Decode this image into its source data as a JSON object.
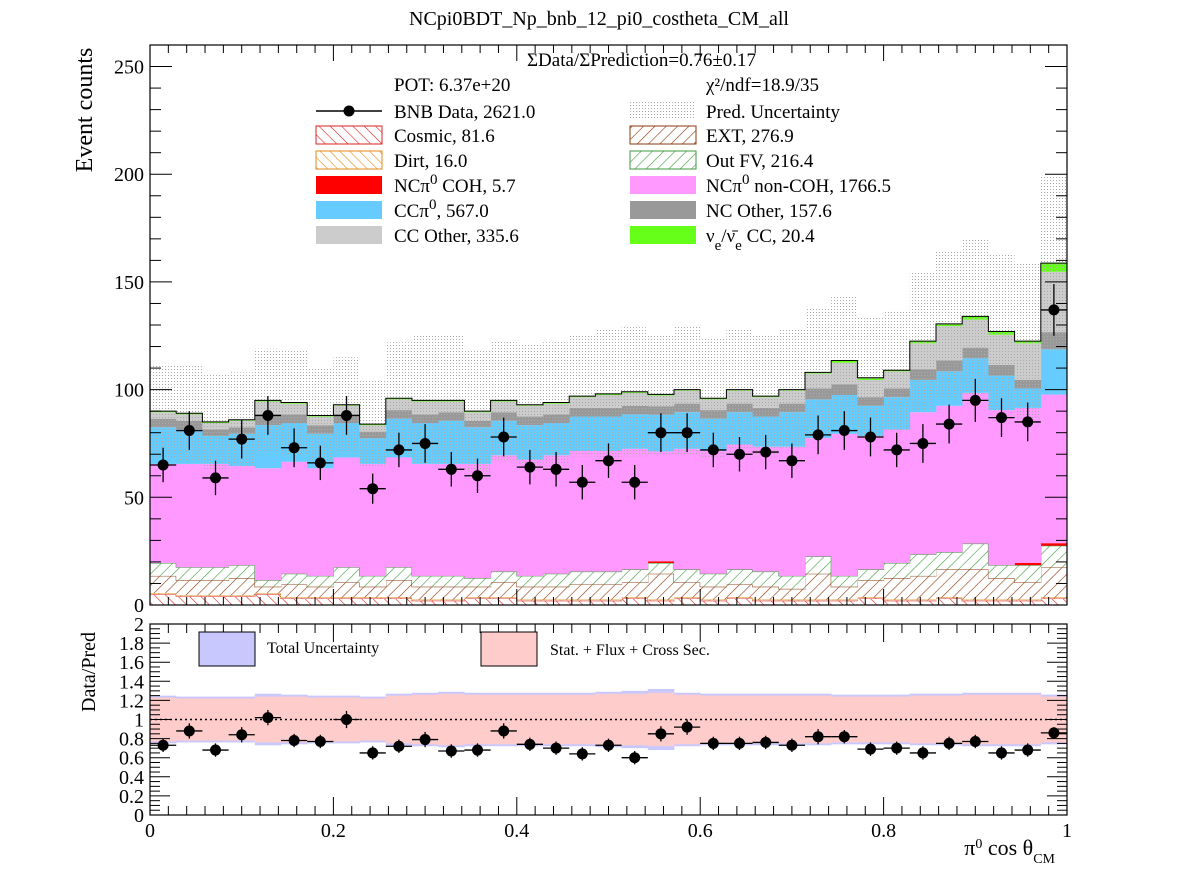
{
  "chart_data": [
    {
      "type": "bar",
      "stacked": true,
      "title": "NCpi0BDT_Np_bnb_12_pi0_costheta_CM_all",
      "ylabel": "Event counts",
      "xlim": [
        0,
        1
      ],
      "ylim": [
        0,
        260
      ],
      "bins": 35,
      "y_ticks": [
        0,
        50,
        100,
        150,
        200,
        250
      ],
      "annotations": {
        "ratio_text": "ΣData/ΣPrediction=0.76±0.17",
        "pot_text": "POT: 6.37e+20",
        "chi2_text": "χ²/ndf=18.9/35"
      },
      "legend_placement": "top",
      "legend": {
        "data": "BNB Data, 2621.0",
        "pred_uncertainty": "Pred. Uncertainty",
        "cosmic": "Cosmic, 81.6",
        "ext": "EXT, 276.9",
        "dirt": "Dirt, 16.0",
        "outfv": "Out FV, 216.4",
        "nccoh_a": "NCπ",
        "nccoh_sup": "0",
        "nccoh_b": " COH,  5.7",
        "ncnoncoh_a": "NCπ",
        "ncnoncoh_sup": "0",
        "ncnoncoh_b": " non-COH,  1766.5",
        "ccpi_a": "CCπ",
        "ccpi_sup": "0",
        "ccpi_b": ", 567.0",
        "ncother": "NC Other, 157.6",
        "ccother": "CC Other, 335.6",
        "nue_a": "ν",
        "nue_sub1": "e",
        "nue_mid": "/ν̄",
        "nue_sub2": "e",
        "nue_b": " CC, 20.4"
      },
      "series": [
        {
          "name": "Cosmic",
          "color": "#dd2222",
          "values": [
            5,
            4,
            4,
            4,
            5,
            3,
            3,
            3,
            3,
            3,
            2,
            2,
            3,
            3,
            2,
            2,
            2,
            2,
            3,
            2,
            3,
            2,
            3,
            2,
            2,
            2,
            2,
            3,
            2,
            2,
            3,
            2,
            2,
            2,
            3
          ]
        },
        {
          "name": "Dirt",
          "color": "#e08a1a",
          "values": [
            0.5,
            0.5,
            0.5,
            0.5,
            0.5,
            0.5,
            0.5,
            0.5,
            0.5,
            0.5,
            0.5,
            0.5,
            0.5,
            0.5,
            0.5,
            0.5,
            0.5,
            0.5,
            0.5,
            0.5,
            0.5,
            0.5,
            0.5,
            0.5,
            0.5,
            0.5,
            0.5,
            0.5,
            0.5,
            0.5,
            0.5,
            0.5,
            0.5,
            0.5,
            0.5
          ]
        },
        {
          "name": "EXT",
          "color": "#8b3a0f",
          "values": [
            8,
            7,
            7,
            8,
            3,
            6,
            5,
            7,
            5,
            8,
            6,
            6,
            5,
            7,
            6,
            6,
            7,
            7,
            7,
            12,
            7,
            6,
            6,
            6,
            5,
            12,
            6,
            8,
            10,
            11,
            13,
            14,
            10,
            8,
            14
          ]
        },
        {
          "name": "Out FV",
          "color": "#3f9a3f",
          "values": [
            6,
            6,
            6,
            6,
            3,
            5,
            5,
            7,
            5,
            6,
            5,
            5,
            4,
            5,
            5,
            6,
            6,
            6,
            6,
            5,
            6,
            6,
            7,
            7,
            6,
            8,
            5,
            5,
            7,
            10,
            8,
            12,
            6,
            8,
            10
          ]
        },
        {
          "name": "NCπ0 COH",
          "color": "#ff0000",
          "values": [
            0,
            0,
            0,
            0,
            0,
            0,
            0,
            0,
            0,
            0,
            0,
            0,
            0,
            0,
            0,
            0,
            0,
            0,
            0,
            0.8,
            0,
            0,
            0,
            0,
            0,
            0,
            0,
            0,
            0,
            0,
            0,
            0,
            0,
            1,
            1.2
          ]
        },
        {
          "name": "NCπ0 non-COH",
          "color": "#ff99ff",
          "values": [
            46,
            48,
            48,
            46,
            52,
            52,
            50,
            51,
            52,
            51,
            52,
            52,
            53,
            54,
            54,
            55,
            56,
            56,
            56,
            51,
            56,
            57,
            58,
            58,
            60,
            55,
            66,
            62,
            62,
            66,
            68,
            70,
            72,
            72,
            69
          ]
        },
        {
          "name": "CCπ0",
          "color": "#66ccff",
          "values": [
            17,
            16,
            13,
            15,
            20,
            18,
            16,
            16,
            12,
            18,
            19,
            20,
            17,
            16,
            16,
            15,
            16,
            16,
            16,
            17,
            17,
            15,
            15,
            14,
            16,
            18,
            18,
            14,
            15,
            15,
            16,
            16,
            16,
            9,
            21
          ]
        },
        {
          "name": "NC Other",
          "color": "#999999",
          "values": [
            4,
            4,
            3,
            3,
            5,
            4,
            4,
            4,
            3,
            4,
            4,
            4,
            3,
            4,
            4,
            4,
            4,
            4,
            4,
            4,
            4,
            4,
            4,
            4,
            4,
            5,
            5,
            4,
            4,
            5,
            5,
            5,
            5,
            4,
            8
          ]
        },
        {
          "name": "CC Other",
          "color": "#cccccc",
          "values": [
            3,
            3,
            3,
            3,
            6,
            5,
            4,
            4,
            3,
            5,
            6,
            5,
            4,
            5,
            5,
            5,
            5,
            6,
            6,
            5,
            6,
            5,
            6,
            5,
            6,
            7,
            10,
            8,
            8,
            12,
            16,
            13,
            14,
            17,
            28
          ]
        },
        {
          "name": "νe/ν̄e CC",
          "color": "#66ff1a",
          "values": [
            0.5,
            0.5,
            0.5,
            0.5,
            0.5,
            0.5,
            0.5,
            0.5,
            0.5,
            0.5,
            0.5,
            0.5,
            0.5,
            0.5,
            0.5,
            0.5,
            0.5,
            0.5,
            0.5,
            0.5,
            0.5,
            0.5,
            0.5,
            0.5,
            0.5,
            0.5,
            1,
            1,
            0.5,
            1,
            1,
            1.5,
            1.5,
            1,
            4
          ]
        }
      ],
      "uncertainty": [
        22,
        22,
        22,
        22,
        24,
        24,
        22,
        22,
        20,
        26,
        30,
        30,
        28,
        28,
        28,
        28,
        28,
        30,
        30,
        28,
        30,
        28,
        28,
        28,
        28,
        30,
        30,
        28,
        28,
        32,
        34,
        36,
        36,
        36,
        40
      ],
      "data_points": [
        65,
        81,
        59,
        77,
        88,
        73,
        66,
        88,
        54,
        72,
        75,
        63,
        60,
        78,
        64,
        63,
        57,
        67,
        57,
        80,
        80,
        72,
        70,
        71,
        67,
        79,
        81,
        78,
        72,
        75,
        84,
        95,
        87,
        85,
        137
      ],
      "data_errors": [
        8,
        9,
        8,
        9,
        9,
        9,
        8,
        9,
        7,
        8,
        9,
        8,
        8,
        9,
        8,
        8,
        8,
        8,
        8,
        9,
        9,
        8,
        8,
        8,
        8,
        9,
        9,
        9,
        8,
        9,
        9,
        10,
        9,
        9,
        12
      ]
    },
    {
      "type": "scatter",
      "ylabel": "Data/Pred",
      "xlabel_a": "π",
      "xlabel_sup": "0",
      "xlabel_b": " cos θ",
      "xlabel_sub": "CM",
      "xlim": [
        0,
        1
      ],
      "ylim": [
        0,
        2
      ],
      "x_ticks": [
        "0",
        "0.2",
        "0.4",
        "0.6",
        "0.8",
        "1"
      ],
      "y_ticks": [
        "0",
        "0.2",
        "0.4",
        "0.6",
        "0.8",
        "1",
        "1.2",
        "1.4",
        "1.6",
        "1.8",
        "2"
      ],
      "legend": {
        "total_uncertainty": "Total Uncertainty",
        "stat_flux": "Stat. + Flux + Cross Sec."
      },
      "band_total_lo": [
        0.75,
        0.76,
        0.76,
        0.76,
        0.73,
        0.74,
        0.75,
        0.75,
        0.76,
        0.73,
        0.72,
        0.71,
        0.72,
        0.72,
        0.72,
        0.72,
        0.72,
        0.71,
        0.7,
        0.68,
        0.72,
        0.73,
        0.73,
        0.73,
        0.73,
        0.73,
        0.74,
        0.74,
        0.74,
        0.73,
        0.73,
        0.72,
        0.72,
        0.72,
        0.74
      ],
      "band_total_hi": [
        1.25,
        1.24,
        1.24,
        1.24,
        1.27,
        1.26,
        1.25,
        1.25,
        1.24,
        1.27,
        1.28,
        1.29,
        1.28,
        1.28,
        1.28,
        1.28,
        1.28,
        1.29,
        1.3,
        1.32,
        1.28,
        1.27,
        1.27,
        1.27,
        1.27,
        1.27,
        1.26,
        1.26,
        1.26,
        1.27,
        1.27,
        1.28,
        1.28,
        1.28,
        1.26
      ],
      "band_stat_lo": [
        0.77,
        0.78,
        0.78,
        0.78,
        0.76,
        0.76,
        0.77,
        0.77,
        0.78,
        0.75,
        0.74,
        0.73,
        0.74,
        0.74,
        0.74,
        0.74,
        0.74,
        0.73,
        0.73,
        0.72,
        0.74,
        0.75,
        0.75,
        0.75,
        0.75,
        0.75,
        0.76,
        0.76,
        0.76,
        0.75,
        0.75,
        0.74,
        0.74,
        0.74,
        0.76
      ],
      "band_stat_hi": [
        1.23,
        1.22,
        1.22,
        1.22,
        1.24,
        1.24,
        1.23,
        1.23,
        1.22,
        1.25,
        1.26,
        1.27,
        1.26,
        1.26,
        1.26,
        1.26,
        1.26,
        1.27,
        1.27,
        1.28,
        1.26,
        1.25,
        1.25,
        1.25,
        1.25,
        1.25,
        1.24,
        1.24,
        1.24,
        1.25,
        1.25,
        1.26,
        1.26,
        1.26,
        1.24
      ],
      "ratio": [
        0.73,
        0.88,
        0.68,
        0.84,
        1.02,
        0.78,
        0.77,
        1.0,
        0.65,
        0.72,
        0.79,
        0.67,
        0.68,
        0.88,
        0.74,
        0.7,
        0.64,
        0.73,
        0.6,
        0.85,
        0.92,
        0.75,
        0.75,
        0.76,
        0.73,
        0.82,
        0.82,
        0.69,
        0.7,
        0.65,
        0.75,
        0.77,
        0.65,
        0.68,
        0.86
      ],
      "ratio_errors": [
        0.07,
        0.08,
        0.07,
        0.08,
        0.08,
        0.07,
        0.07,
        0.09,
        0.07,
        0.07,
        0.08,
        0.07,
        0.07,
        0.08,
        0.07,
        0.07,
        0.07,
        0.07,
        0.07,
        0.08,
        0.08,
        0.07,
        0.07,
        0.07,
        0.07,
        0.08,
        0.07,
        0.07,
        0.07,
        0.07,
        0.07,
        0.07,
        0.07,
        0.07,
        0.06
      ]
    }
  ]
}
